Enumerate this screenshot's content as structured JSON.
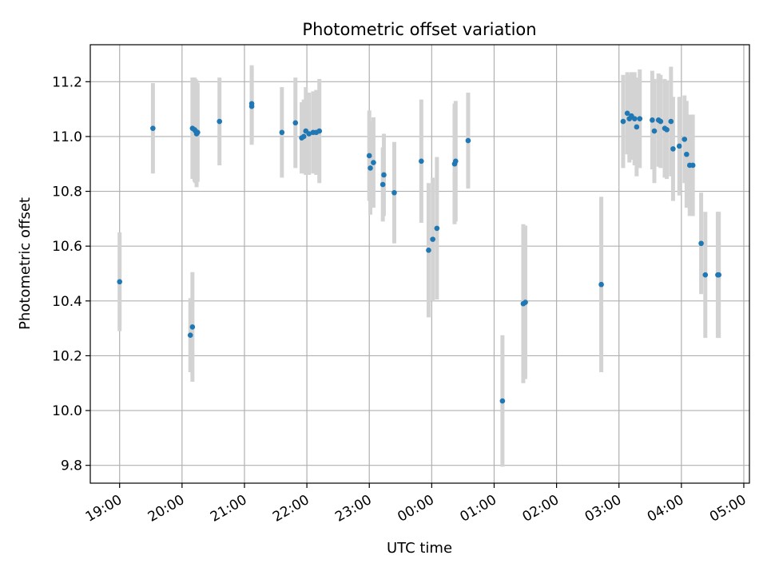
{
  "chart_data": {
    "type": "scatter",
    "title": "Photometric offset variation",
    "xlabel": "UTC time",
    "ylabel": "Photometric offset",
    "x_ticks": [
      "19:00",
      "20:00",
      "21:00",
      "22:00",
      "23:00",
      "00:00",
      "01:00",
      "02:00",
      "03:00",
      "04:00",
      "05:00"
    ],
    "y_ticks": [
      "9.8",
      "10.0",
      "10.2",
      "10.4",
      "10.6",
      "10.8",
      "11.0",
      "11.2"
    ],
    "xlim_hours": [
      18.53,
      29.09
    ],
    "ylim": [
      9.735,
      11.335
    ],
    "grid": true,
    "colors": {
      "point": "#1f77b4",
      "errorbar": "#d3d3d3",
      "grid": "#b0b0b0"
    },
    "series": [
      {
        "x_time": [
          "19:00",
          "19:32",
          "20:08",
          "20:10",
          "20:10",
          "20:12",
          "20:13",
          "20:14",
          "20:15",
          "20:36",
          "21:07",
          "21:07",
          "21:36",
          "21:49",
          "21:55",
          "21:57",
          "21:59",
          "22:02",
          "22:06",
          "22:09",
          "22:12",
          "23:00",
          "23:01",
          "23:04",
          "23:13",
          "23:14",
          "23:24",
          "23:50",
          "23:57",
          "00:01",
          "00:05",
          "00:22",
          "00:23",
          "00:35",
          "01:08",
          "01:28",
          "01:30",
          "02:43",
          "03:04",
          "03:08",
          "03:10",
          "03:12",
          "03:15",
          "03:17",
          "03:20",
          "03:32",
          "03:34",
          "03:38",
          "03:40",
          "03:44",
          "03:46",
          "03:50",
          "03:52",
          "03:58",
          "04:03",
          "04:05",
          "04:08",
          "04:11",
          "04:19",
          "04:23",
          "04:35",
          "04:36"
        ],
        "y": [
          10.47,
          11.03,
          10.275,
          11.03,
          10.305,
          11.025,
          11.02,
          11.01,
          11.015,
          11.055,
          11.11,
          11.12,
          11.015,
          11.05,
          10.995,
          11.0,
          11.02,
          11.01,
          11.015,
          11.015,
          11.02,
          10.93,
          10.885,
          10.905,
          10.825,
          10.86,
          10.795,
          10.91,
          10.585,
          10.625,
          10.665,
          10.9,
          10.91,
          10.985,
          10.035,
          10.39,
          10.395,
          10.46,
          11.055,
          11.085,
          11.065,
          11.075,
          11.065,
          11.035,
          11.065,
          11.06,
          11.02,
          11.06,
          11.055,
          11.03,
          11.025,
          11.055,
          10.955,
          10.965,
          10.99,
          10.935,
          10.895,
          10.895,
          10.61,
          10.495,
          10.495,
          10.495
        ],
        "err": [
          0.18,
          0.165,
          0.135,
          0.185,
          0.2,
          0.19,
          0.19,
          0.195,
          0.18,
          0.16,
          0.14,
          0.14,
          0.165,
          0.165,
          0.13,
          0.135,
          0.16,
          0.15,
          0.15,
          0.155,
          0.19,
          0.165,
          0.17,
          0.165,
          0.135,
          0.15,
          0.185,
          0.225,
          0.245,
          0.225,
          0.26,
          0.22,
          0.22,
          0.175,
          0.24,
          0.29,
          0.28,
          0.32,
          0.17,
          0.15,
          0.16,
          0.16,
          0.17,
          0.18,
          0.18,
          0.18,
          0.19,
          0.17,
          0.17,
          0.18,
          0.18,
          0.2,
          0.19,
          0.18,
          0.16,
          0.195,
          0.185,
          0.185,
          0.185,
          0.23,
          0.23,
          0.23
        ]
      }
    ]
  }
}
